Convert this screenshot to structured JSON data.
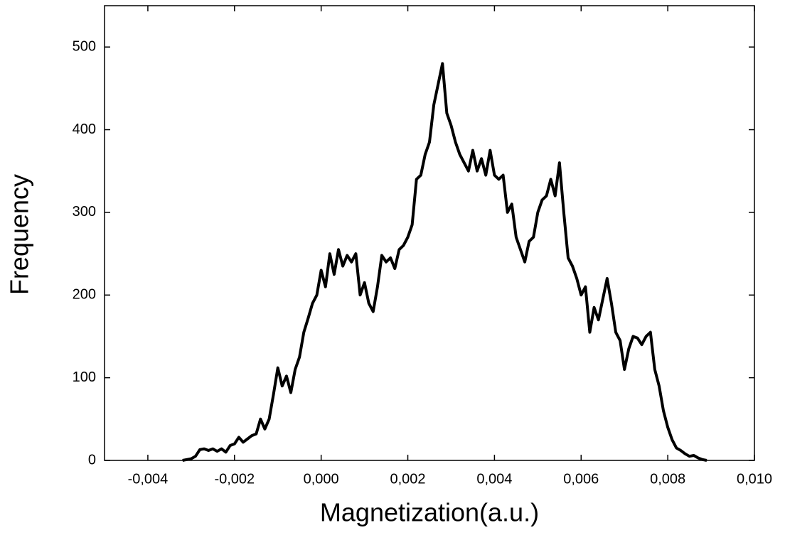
{
  "chart_data": {
    "type": "line",
    "xlabel": "Magnetization(a.u.)",
    "ylabel": "Frequency",
    "x": [
      -0.0032,
      -0.0031,
      -0.003,
      -0.0029,
      -0.0028,
      -0.0027,
      -0.0026,
      -0.0025,
      -0.0024,
      -0.0023,
      -0.0022,
      -0.0021,
      -0.002,
      -0.0019,
      -0.0018,
      -0.0017,
      -0.0016,
      -0.0015,
      -0.0014,
      -0.0013,
      -0.0012,
      -0.0011,
      -0.001,
      -0.0009,
      -0.0008,
      -0.0007,
      -0.0006,
      -0.0005,
      -0.0004,
      -0.0003,
      -0.0002,
      -0.0001,
      0,
      0.0001,
      0.0002,
      0.0003,
      0.0004,
      0.0005,
      0.0006,
      0.0007,
      0.0008,
      0.0009,
      0.001,
      0.0011,
      0.0012,
      0.0013,
      0.0014,
      0.0015,
      0.0016,
      0.0017,
      0.0018,
      0.0019,
      0.002,
      0.0021,
      0.0022,
      0.0023,
      0.0024,
      0.0025,
      0.0026,
      0.0027,
      0.0028,
      0.0029,
      0.003,
      0.0031,
      0.0032,
      0.0033,
      0.0034,
      0.0035,
      0.0036,
      0.0037,
      0.0038,
      0.0039,
      0.004,
      0.0041,
      0.0042,
      0.0043,
      0.0044,
      0.0045,
      0.0046,
      0.0047,
      0.0048,
      0.0049,
      0.005,
      0.0051,
      0.0052,
      0.0053,
      0.0054,
      0.0055,
      0.0056,
      0.0057,
      0.0058,
      0.0059,
      0.006,
      0.0061,
      0.0062,
      0.0063,
      0.0064,
      0.0065,
      0.0066,
      0.0067,
      0.0068,
      0.0069,
      0.007,
      0.0071,
      0.0072,
      0.0073,
      0.0074,
      0.0075,
      0.0076,
      0.0077,
      0.0078,
      0.0079,
      0.008,
      0.0081,
      0.0082,
      0.0083,
      0.0084,
      0.0085,
      0.0086,
      0.0087,
      0.0088,
      0.0089
    ],
    "series": [
      {
        "color": "#000000",
        "values": [
          0,
          1,
          2,
          5,
          13,
          14,
          12,
          14,
          11,
          14,
          10,
          18,
          20,
          28,
          22,
          26,
          30,
          32,
          50,
          38,
          50,
          80,
          112,
          90,
          102,
          82,
          110,
          125,
          155,
          172,
          190,
          200,
          230,
          210,
          250,
          225,
          255,
          235,
          248,
          240,
          250,
          200,
          215,
          190,
          180,
          210,
          248,
          240,
          245,
          232,
          255,
          260,
          270,
          285,
          340,
          345,
          370,
          385,
          430,
          455,
          480,
          420,
          405,
          385,
          370,
          360,
          350,
          375,
          350,
          365,
          345,
          375,
          345,
          340,
          345,
          300,
          310,
          270,
          255,
          240,
          265,
          270,
          300,
          315,
          320,
          340,
          320,
          360,
          300,
          245,
          235,
          220,
          200,
          210,
          155,
          185,
          170,
          195,
          220,
          190,
          155,
          145,
          110,
          135,
          150,
          148,
          140,
          150,
          155,
          110,
          90,
          60,
          40,
          25,
          15,
          12,
          8,
          5,
          6,
          3,
          1,
          0
        ]
      }
    ],
    "xlim": [
      -0.005,
      0.01
    ],
    "xticks": [
      {
        "value": -0.004,
        "label": "-0,004"
      },
      {
        "value": -0.002,
        "label": "-0,002"
      },
      {
        "value": 0,
        "label": "0,000"
      },
      {
        "value": 0.002,
        "label": "0,002"
      },
      {
        "value": 0.004,
        "label": "0,004"
      },
      {
        "value": 0.006,
        "label": "0,006"
      },
      {
        "value": 0.008,
        "label": "0,008"
      },
      {
        "value": 0.01,
        "label": "0,010"
      }
    ],
    "ylim": [
      0,
      550
    ],
    "yticks": [
      0,
      100,
      200,
      300,
      400,
      500
    ]
  }
}
